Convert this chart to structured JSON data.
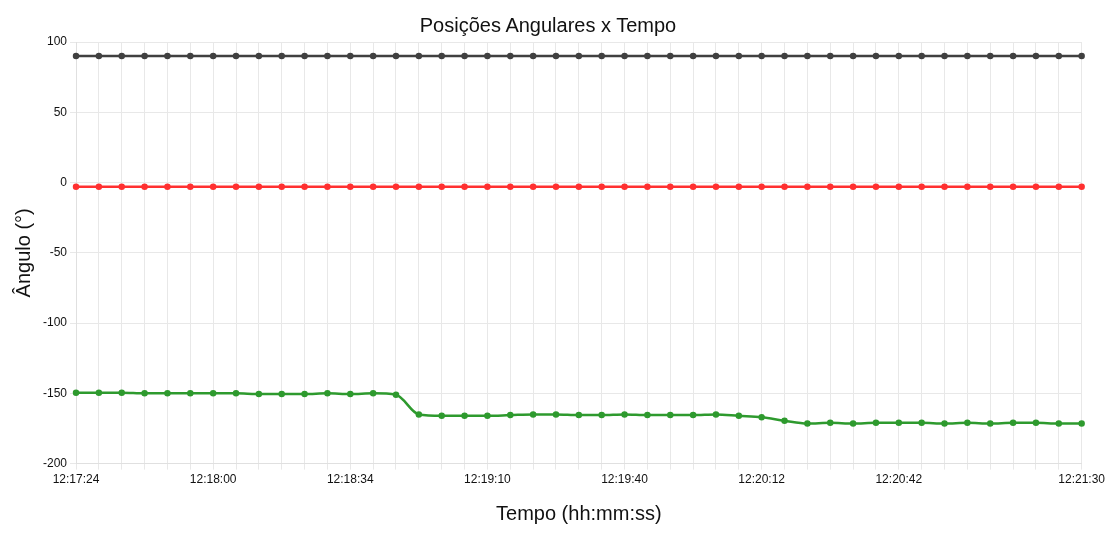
{
  "chart_data": {
    "type": "line",
    "title": "Posições Angulares x Tempo",
    "xlabel": "Tempo (hh:mm:ss)",
    "ylabel": "Ângulo (°)",
    "categories": [
      "12:17:24",
      null,
      null,
      null,
      null,
      null,
      "12:18:00",
      null,
      null,
      null,
      null,
      null,
      "12:18:34",
      null,
      null,
      null,
      null,
      null,
      "12:19:10",
      null,
      null,
      null,
      null,
      null,
      "12:19:40",
      null,
      null,
      null,
      null,
      null,
      "12:20:12",
      null,
      null,
      null,
      null,
      null,
      "12:20:42",
      null,
      null,
      null,
      null,
      null,
      null,
      null,
      "12:21:30"
    ],
    "series": [
      {
        "color": "#404040",
        "values": [
          90,
          90,
          90,
          90,
          90,
          90,
          90,
          90,
          90,
          90,
          90,
          90,
          90,
          90,
          90,
          90,
          90,
          90,
          90,
          90,
          90,
          90,
          90,
          90,
          90,
          90,
          90,
          90,
          90,
          90,
          90,
          90,
          90,
          90,
          90,
          90,
          90,
          90,
          90,
          90,
          90,
          90,
          90,
          90,
          90
        ]
      },
      {
        "color": "#ff3030",
        "values": [
          -3,
          -3,
          -3,
          -3,
          -3,
          -3,
          -3,
          -3,
          -3,
          -3,
          -3,
          -3,
          -3,
          -3,
          -3,
          -3,
          -3,
          -3,
          -3,
          -3,
          -3,
          -3,
          -3,
          -3,
          -3,
          -3,
          -3,
          -3,
          -3,
          -3,
          -3,
          -3,
          -3,
          -3,
          -3,
          -3,
          -3,
          -3,
          -3,
          -3,
          -3,
          -3,
          -3,
          -3,
          -3
        ]
      },
      {
        "color": "#2e9a2e",
        "values": [
          -149.5,
          -149.5,
          -149.5,
          -150,
          -150,
          -150,
          -150,
          -150,
          -150.5,
          -150.5,
          -150.5,
          -150,
          -150.5,
          -150,
          -151,
          -165,
          -166,
          -166,
          -166,
          -165.5,
          -165,
          -165,
          -165.5,
          -165.5,
          -165,
          -165.5,
          -165.5,
          -165.5,
          -165,
          -166,
          -167,
          -169.5,
          -171.5,
          -171,
          -171.5,
          -171,
          -171,
          -171,
          -171.5,
          -171,
          -171.5,
          -171,
          -171,
          -171.5,
          -171.5
        ]
      }
    ],
    "ylim": [
      -200,
      100
    ],
    "yticks": [
      -200,
      -150,
      -100,
      -50,
      0,
      50,
      100
    ],
    "grid": true,
    "marker": "circle",
    "line_style": "solid"
  }
}
